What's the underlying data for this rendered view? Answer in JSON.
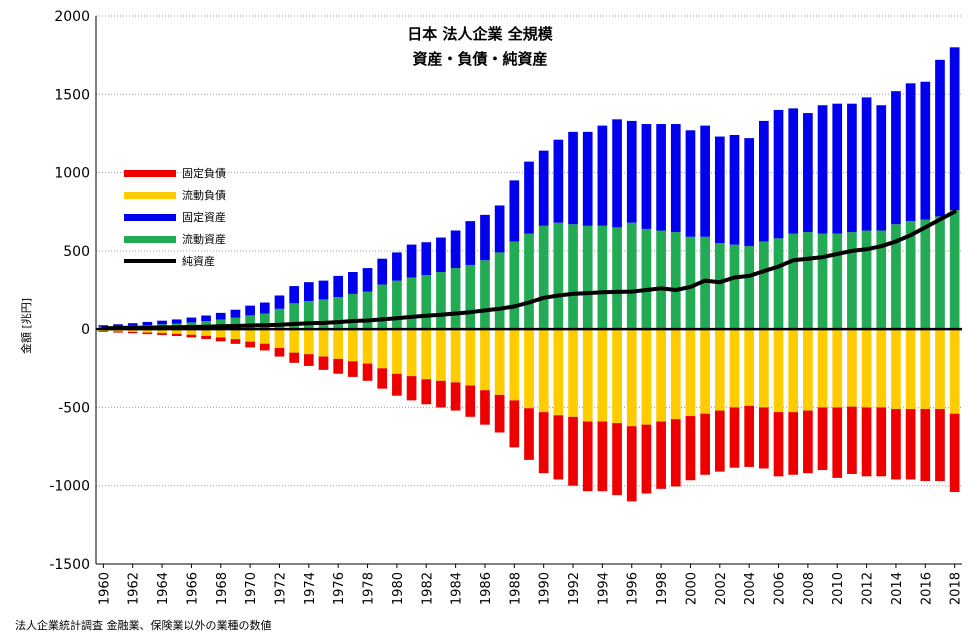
{
  "title_line1": "日本 法人企業 全規模",
  "title_line2": "資産・負債・純資産",
  "ylabel": "金額 [兆円]",
  "source": "法人企業統計調査 金融業、保険業以外の業種の数値",
  "colors": {
    "fixed_liabilities": "#ee0000",
    "current_liabilities": "#ffcc00",
    "fixed_assets": "#0000ee",
    "current_assets": "#22aa55",
    "net_assets": "#000000",
    "grid": "#999999"
  },
  "legend": [
    {
      "key": "fixed_liabilities",
      "label": "固定負債",
      "type": "bar"
    },
    {
      "key": "current_liabilities",
      "label": "流動負債",
      "type": "bar"
    },
    {
      "key": "fixed_assets",
      "label": "固定資産",
      "type": "bar"
    },
    {
      "key": "current_assets",
      "label": "流動資産",
      "type": "bar"
    },
    {
      "key": "net_assets",
      "label": "純資産",
      "type": "line"
    }
  ],
  "chart_data": {
    "type": "bar",
    "stacked": true,
    "ylim": [
      -1500,
      2000
    ],
    "yticks": [
      -1500,
      -1000,
      -500,
      0,
      500,
      1000,
      1500,
      2000
    ],
    "xticks": [
      "1960",
      "1962",
      "1964",
      "1966",
      "1968",
      "1970",
      "1972",
      "1974",
      "1976",
      "1978",
      "1980",
      "1982",
      "1984",
      "1986",
      "1988",
      "1990",
      "1992",
      "1994",
      "1996",
      "1998",
      "2000",
      "2002",
      "2004",
      "2006",
      "2008",
      "2010",
      "2012",
      "2014",
      "2016",
      "2018"
    ],
    "x": [
      1960,
      1961,
      1962,
      1963,
      1964,
      1965,
      1966,
      1967,
      1968,
      1969,
      1970,
      1971,
      1972,
      1973,
      1974,
      1975,
      1976,
      1977,
      1978,
      1979,
      1980,
      1981,
      1982,
      1983,
      1984,
      1985,
      1986,
      1987,
      1988,
      1989,
      1990,
      1991,
      1992,
      1993,
      1994,
      1995,
      1996,
      1997,
      1998,
      1999,
      2000,
      2001,
      2002,
      2003,
      2004,
      2005,
      2006,
      2007,
      2008,
      2009,
      2010,
      2011,
      2012,
      2013,
      2014,
      2015,
      2016,
      2017,
      2018
    ],
    "series": [
      {
        "name": "流動資産",
        "key": "current_assets",
        "values": [
          15,
          18,
          22,
          26,
          31,
          36,
          43,
          51,
          61,
          73,
          88,
          100,
          130,
          165,
          180,
          190,
          205,
          225,
          240,
          285,
          310,
          330,
          345,
          365,
          390,
          410,
          440,
          490,
          560,
          610,
          660,
          680,
          670,
          660,
          660,
          650,
          680,
          640,
          630,
          620,
          590,
          590,
          550,
          540,
          530,
          560,
          580,
          610,
          620,
          610,
          610,
          620,
          630,
          630,
          670,
          690,
          700,
          720,
          760
        ]
      },
      {
        "name": "固定資産",
        "key": "fixed_assets",
        "values": [
          10,
          13,
          16,
          20,
          23,
          26,
          31,
          36,
          43,
          51,
          62,
          70,
          85,
          110,
          120,
          120,
          135,
          140,
          150,
          165,
          180,
          210,
          210,
          220,
          240,
          280,
          290,
          300,
          390,
          460,
          480,
          530,
          590,
          600,
          640,
          690,
          650,
          670,
          680,
          690,
          680,
          710,
          680,
          700,
          690,
          770,
          820,
          800,
          760,
          820,
          830,
          820,
          850,
          800,
          850,
          880,
          880,
          1000,
          1040
        ]
      },
      {
        "name": "流動負債",
        "key": "current_liabilities",
        "values": [
          -12,
          -15,
          -18,
          -22,
          -25,
          -30,
          -36,
          -43,
          -53,
          -64,
          -80,
          -93,
          -120,
          -150,
          -160,
          -175,
          -190,
          -205,
          -220,
          -250,
          -285,
          -300,
          -320,
          -330,
          -340,
          -360,
          -390,
          -420,
          -455,
          -505,
          -530,
          -550,
          -560,
          -590,
          -590,
          -600,
          -620,
          -610,
          -590,
          -575,
          -555,
          -540,
          -520,
          -500,
          -490,
          -500,
          -530,
          -530,
          -520,
          -500,
          -500,
          -495,
          -500,
          -500,
          -510,
          -510,
          -510,
          -510,
          -540
        ]
      },
      {
        "name": "固定負債",
        "key": "fixed_liabilities",
        "values": [
          -5,
          -7,
          -8,
          -10,
          -12,
          -14,
          -17,
          -20,
          -25,
          -30,
          -37,
          -43,
          -55,
          -65,
          -75,
          -85,
          -95,
          -100,
          -110,
          -130,
          -140,
          -155,
          -160,
          -170,
          -180,
          -200,
          -220,
          -240,
          -300,
          -330,
          -390,
          -410,
          -440,
          -445,
          -445,
          -460,
          -480,
          -440,
          -430,
          -430,
          -410,
          -390,
          -390,
          -385,
          -390,
          -390,
          -410,
          -400,
          -400,
          -400,
          -450,
          -430,
          -440,
          -440,
          -450,
          -450,
          -460,
          -460,
          -500
        ]
      },
      {
        "name": "純資産",
        "key": "net_assets",
        "type": "line",
        "values": [
          5,
          7,
          9,
          10,
          11,
          12,
          14,
          15,
          18,
          20,
          23,
          25,
          28,
          33,
          37,
          40,
          45,
          52,
          55,
          62,
          70,
          78,
          85,
          92,
          100,
          108,
          120,
          130,
          145,
          170,
          200,
          215,
          225,
          230,
          235,
          238,
          240,
          250,
          260,
          250,
          270,
          310,
          300,
          330,
          340,
          370,
          400,
          440,
          450,
          460,
          480,
          500,
          510,
          530,
          560,
          600,
          650,
          700,
          750
        ]
      }
    ]
  }
}
